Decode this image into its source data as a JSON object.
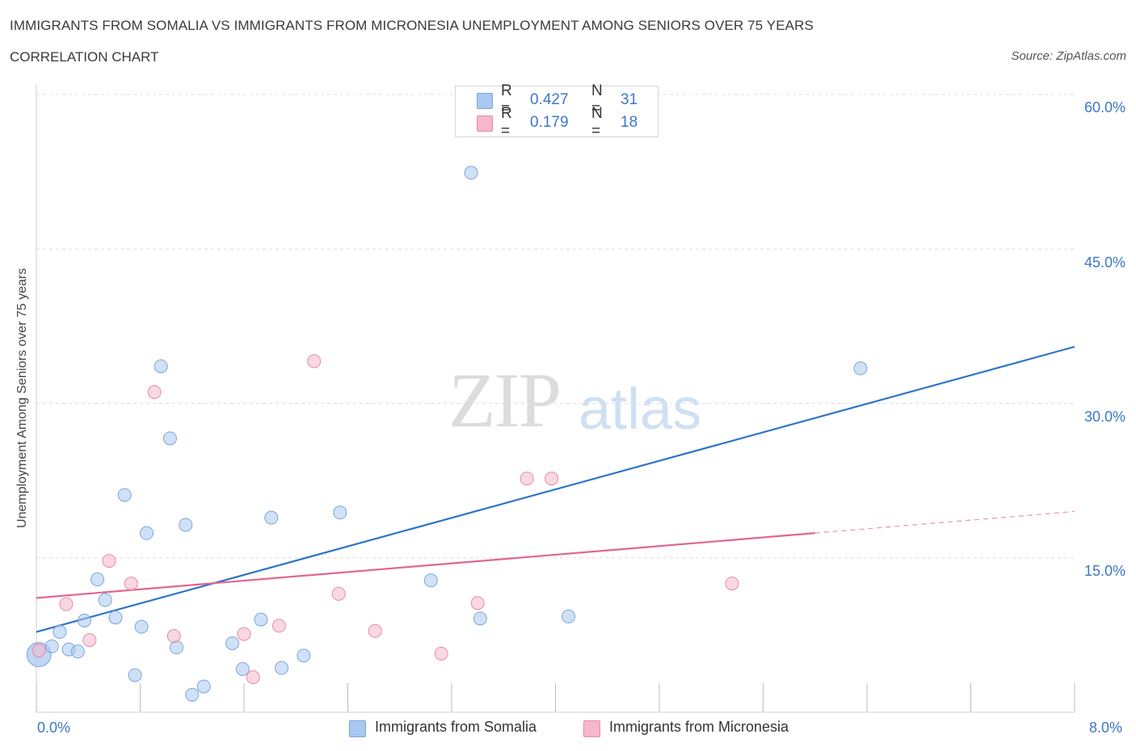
{
  "header": {
    "title": "IMMIGRANTS FROM SOMALIA VS IMMIGRANTS FROM MICRONESIA UNEMPLOYMENT AMONG SENIORS OVER 75 YEARS",
    "subtitle": "CORRELATION CHART",
    "source": "Source: ZipAtlas.com"
  },
  "watermark": {
    "zip": "ZIP",
    "atlas": "atlas"
  },
  "legend": {
    "rows": [
      {
        "r_label": "R =",
        "r_value": "0.427",
        "n_label": "N =",
        "n_value": "31",
        "color": "#a9c8f0"
      },
      {
        "r_label": "R =",
        "r_value": "0.179",
        "n_label": "N =",
        "n_value": "18",
        "color": "#f6b8c9"
      }
    ]
  },
  "axis": {
    "ylabel": "Unemployment Among Seniors over 75 years",
    "x_min_label": "0.0%",
    "x_max_label": "8.0%",
    "y_tick_labels": [
      "15.0%",
      "30.0%",
      "45.0%",
      "60.0%"
    ]
  },
  "bottom_legend": {
    "somalia": "Immigrants from Somalia",
    "micronesia": "Immigrants from Micronesia"
  },
  "colors": {
    "somalia_fill": "#a9c8f0",
    "somalia_stroke": "#7aa6dc",
    "somalia_line": "#2f74c8",
    "micronesia_fill": "#f6b8c9",
    "micronesia_stroke": "#e88aa5",
    "micronesia_line": "#e06690",
    "axis_label": "#3b77c9"
  },
  "chart_data": {
    "type": "scatter",
    "xlim": [
      0,
      8
    ],
    "ylim": [
      0,
      60
    ],
    "x_unit": "%",
    "y_unit": "%",
    "grid": true,
    "series": [
      {
        "name": "Immigrants from Somalia",
        "color": "#a9c8f0",
        "points": [
          [
            0.02,
            5.6
          ],
          [
            0.12,
            6.4
          ],
          [
            0.18,
            7.8
          ],
          [
            0.25,
            6.1
          ],
          [
            0.32,
            5.9
          ],
          [
            0.37,
            8.9
          ],
          [
            0.47,
            12.9
          ],
          [
            0.53,
            10.9
          ],
          [
            0.61,
            9.2
          ],
          [
            0.68,
            21.1
          ],
          [
            0.76,
            3.6
          ],
          [
            0.81,
            8.3
          ],
          [
            0.85,
            17.4
          ],
          [
            0.96,
            33.6
          ],
          [
            1.03,
            26.6
          ],
          [
            1.08,
            6.3
          ],
          [
            1.15,
            18.2
          ],
          [
            1.2,
            1.7
          ],
          [
            1.29,
            2.5
          ],
          [
            1.51,
            6.7
          ],
          [
            1.59,
            4.2
          ],
          [
            1.73,
            9.0
          ],
          [
            1.81,
            18.9
          ],
          [
            1.89,
            4.3
          ],
          [
            2.06,
            5.5
          ],
          [
            2.34,
            19.4
          ],
          [
            3.04,
            12.8
          ],
          [
            3.35,
            52.4
          ],
          [
            3.42,
            9.1
          ],
          [
            4.1,
            9.3
          ],
          [
            6.35,
            33.4
          ]
        ],
        "trend": {
          "x": [
            0,
            8
          ],
          "y": [
            7.8,
            35.5
          ]
        }
      },
      {
        "name": "Immigrants from Micronesia",
        "color": "#f6b8c9",
        "points": [
          [
            0.02,
            6.0
          ],
          [
            0.23,
            10.5
          ],
          [
            0.41,
            7.0
          ],
          [
            0.56,
            14.7
          ],
          [
            0.73,
            12.5
          ],
          [
            0.91,
            31.1
          ],
          [
            1.06,
            7.4
          ],
          [
            1.6,
            7.6
          ],
          [
            1.67,
            3.4
          ],
          [
            1.87,
            8.4
          ],
          [
            2.14,
            34.1
          ],
          [
            2.33,
            11.5
          ],
          [
            2.61,
            7.9
          ],
          [
            3.12,
            5.7
          ],
          [
            3.4,
            10.6
          ],
          [
            3.78,
            22.7
          ],
          [
            3.97,
            22.7
          ],
          [
            5.36,
            12.5
          ]
        ],
        "trend": {
          "x": [
            0,
            6.0
          ],
          "y": [
            11.1,
            17.4
          ]
        },
        "trend_extension": {
          "x": [
            6.0,
            8
          ],
          "y": [
            17.4,
            19.5
          ]
        }
      }
    ]
  }
}
